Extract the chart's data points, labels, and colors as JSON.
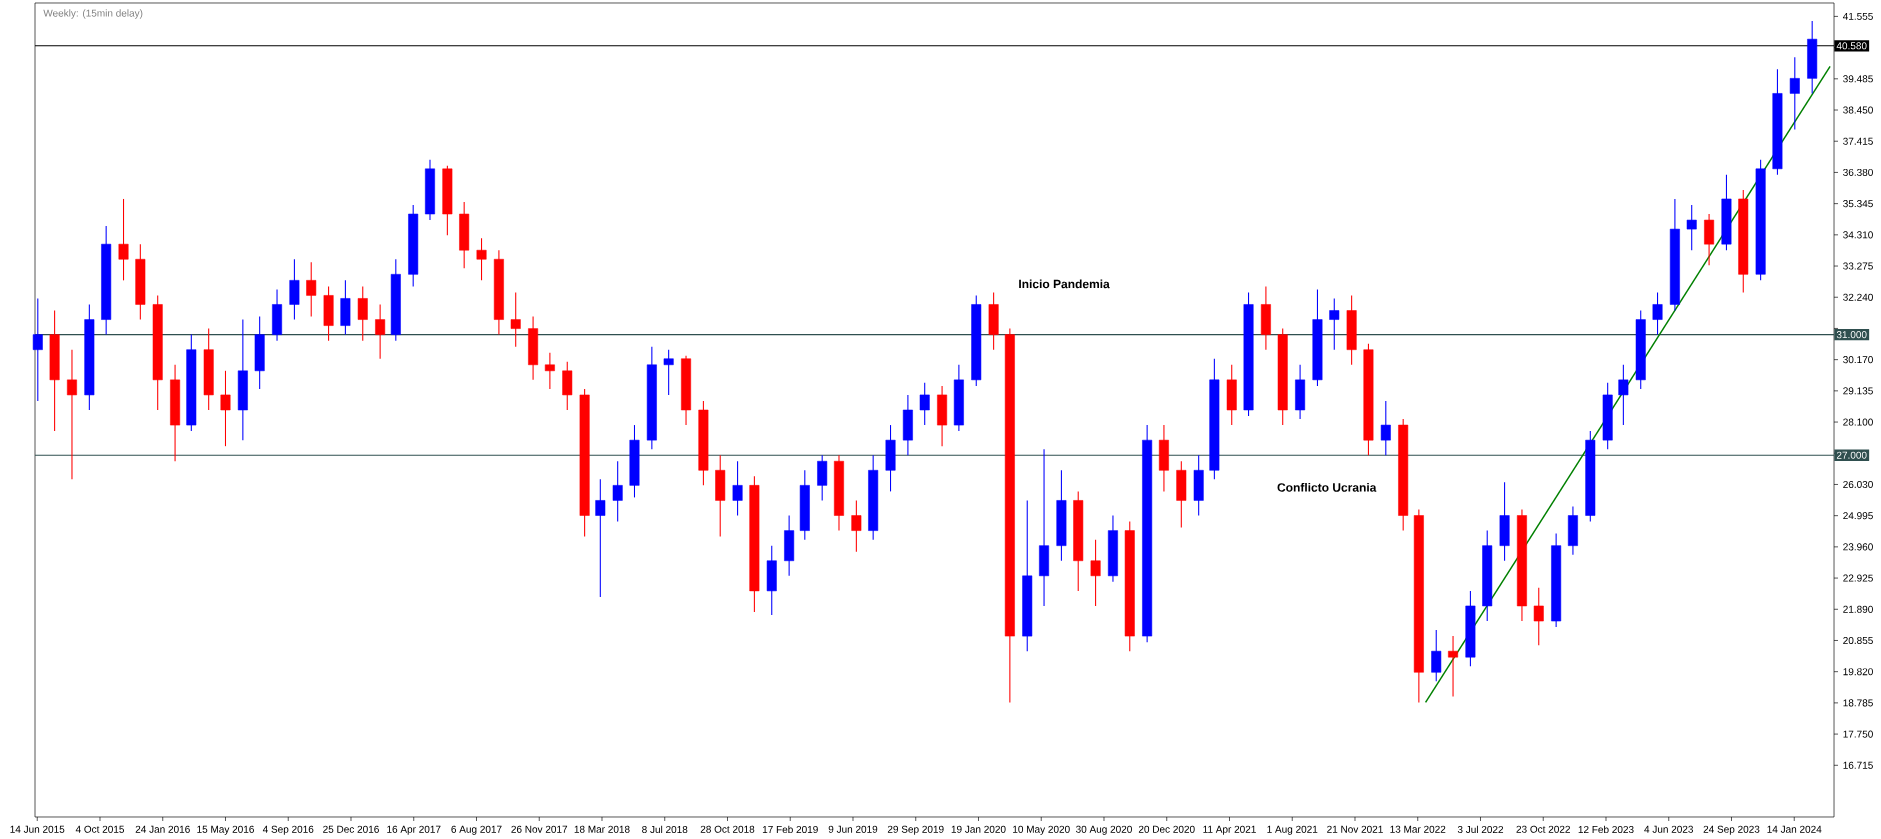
{
  "chart_data": {
    "type": "candlestick",
    "title": "Weekly: (15min delay)",
    "xlim": [
      "2015-06-10",
      "2024-03-25"
    ],
    "xticks": [
      {
        "value": "2015-06-14",
        "label": "14 Jun 2015"
      },
      {
        "value": "2015-10-04",
        "label": "4 Oct 2015"
      },
      {
        "value": "2016-01-24",
        "label": "24 Jan 2016"
      },
      {
        "value": "2016-05-15",
        "label": "15 May 2016"
      },
      {
        "value": "2016-09-04",
        "label": "4 Sep 2016"
      },
      {
        "value": "2016-12-25",
        "label": "25 Dec 2016"
      },
      {
        "value": "2017-04-16",
        "label": "16 Apr 2017"
      },
      {
        "value": "2017-08-06",
        "label": "6 Aug 2017"
      },
      {
        "value": "2017-11-26",
        "label": "26 Nov 2017"
      },
      {
        "value": "2018-03-18",
        "label": "18 Mar 2018"
      },
      {
        "value": "2018-07-08",
        "label": "8 Jul 2018"
      },
      {
        "value": "2018-10-28",
        "label": "28 Oct 2018"
      },
      {
        "value": "2019-02-17",
        "label": "17 Feb 2019"
      },
      {
        "value": "2019-06-09",
        "label": "9 Jun 2019"
      },
      {
        "value": "2019-09-29",
        "label": "29 Sep 2019"
      },
      {
        "value": "2020-01-19",
        "label": "19 Jan 2020"
      },
      {
        "value": "2020-05-10",
        "label": "10 May 2020"
      },
      {
        "value": "2020-08-30",
        "label": "30 Aug 2020"
      },
      {
        "value": "2020-12-20",
        "label": "20 Dec 2020"
      },
      {
        "value": "2021-04-11",
        "label": "11 Apr 2021"
      },
      {
        "value": "2021-08-01",
        "label": "1 Aug 2021"
      },
      {
        "value": "2021-11-21",
        "label": "21 Nov 2021"
      },
      {
        "value": "2022-03-13",
        "label": "13 Mar 2022"
      },
      {
        "value": "2022-07-03",
        "label": "3 Jul 2022"
      },
      {
        "value": "2022-10-23",
        "label": "23 Oct 2022"
      },
      {
        "value": "2023-02-12",
        "label": "12 Feb 2023"
      },
      {
        "value": "2023-06-04",
        "label": "4 Jun 2023"
      },
      {
        "value": "2023-09-24",
        "label": "24 Sep 2023"
      },
      {
        "value": "2024-01-14",
        "label": "14 Jan 2024"
      }
    ],
    "ylim": [
      15.0,
      42.0
    ],
    "yticks": [
      16.715,
      {
        "value": 17.75,
        "label": "17.750"
      },
      18.785,
      {
        "value": 19.82,
        "label": "19.820"
      },
      20.855,
      {
        "value": 21.89,
        "label": "21.890"
      },
      22.925,
      {
        "value": 23.96,
        "label": "23.960"
      },
      24.995,
      {
        "value": 26.03,
        "label": "26.030"
      },
      {
        "value": 27.065,
        "label": null
      },
      {
        "value": 28.1,
        "label": "28.100"
      },
      29.135,
      {
        "value": 30.17,
        "label": "30.170"
      },
      {
        "value": 31.205,
        "label": null
      },
      {
        "value": 32.24,
        "label": "32.240"
      },
      33.275,
      {
        "value": 34.31,
        "label": "34.310"
      },
      35.345,
      {
        "value": 36.38,
        "label": "36.380"
      },
      37.415,
      {
        "value": 38.45,
        "label": "38.450"
      },
      39.485,
      {
        "value": 40.52,
        "label": null
      },
      41.555
    ],
    "ref_lines": [
      {
        "axis": "y",
        "value": 40.58,
        "label": "40.580",
        "color": "#000000"
      },
      {
        "axis": "y",
        "value": 31.0,
        "label": "31.000",
        "color": "#2f4f4f"
      },
      {
        "axis": "y",
        "value": 27.0,
        "label": "27.000",
        "color": "#2f4f4f"
      }
    ],
    "annotations": [
      "Inicio Pandemia",
      "Conflicto Ucrania"
    ],
    "series": [
      {
        "type": "line",
        "color": "#008000",
        "x": [
          "2022-03-27",
          "2024-03-18"
        ],
        "values": [
          18.8,
          39.9
        ]
      },
      {
        "x": [
          "2015-06-15",
          "2015-07-15",
          "2015-08-15",
          "2015-09-15",
          "2015-10-15",
          "2015-11-15",
          "2015-12-15",
          "2016-01-15",
          "2016-02-15",
          "2016-03-15",
          "2016-04-15",
          "2016-05-15",
          "2016-06-15",
          "2016-07-15",
          "2016-08-15",
          "2016-09-15",
          "2016-10-15",
          "2016-11-15",
          "2016-12-15",
          "2017-01-15",
          "2017-02-15",
          "2017-03-15",
          "2017-04-15",
          "2017-05-15",
          "2017-06-15",
          "2017-07-15",
          "2017-08-15",
          "2017-09-15",
          "2017-10-15",
          "2017-11-15",
          "2017-12-15",
          "2018-01-15",
          "2018-02-15",
          "2018-03-15",
          "2018-04-15",
          "2018-05-15",
          "2018-06-15",
          "2018-07-15",
          "2018-08-15",
          "2018-09-15",
          "2018-10-15",
          "2018-11-15",
          "2018-12-15",
          "2019-01-15",
          "2019-02-15",
          "2019-03-15",
          "2019-04-15",
          "2019-05-15",
          "2019-06-15",
          "2019-07-15",
          "2019-08-15",
          "2019-09-15",
          "2019-10-15",
          "2019-11-15",
          "2019-12-15",
          "2020-01-15",
          "2020-02-15",
          "2020-03-15",
          "2020-04-15",
          "2020-05-15",
          "2020-06-15",
          "2020-07-15",
          "2020-08-15",
          "2020-09-15",
          "2020-10-15",
          "2020-11-15",
          "2020-12-15",
          "2021-01-15",
          "2021-02-15",
          "2021-03-15",
          "2021-04-15",
          "2021-05-15",
          "2021-06-15",
          "2021-07-15",
          "2021-08-15",
          "2021-09-15",
          "2021-10-15",
          "2021-11-15",
          "2021-12-15",
          "2022-01-15",
          "2022-02-15",
          "2022-03-15",
          "2022-04-15",
          "2022-05-15",
          "2022-06-15",
          "2022-07-15",
          "2022-08-15",
          "2022-09-15",
          "2022-10-15",
          "2022-11-15",
          "2022-12-15",
          "2023-01-15",
          "2023-02-15",
          "2023-03-15",
          "2023-04-15",
          "2023-05-15",
          "2023-06-15",
          "2023-07-15",
          "2023-08-15",
          "2023-09-15",
          "2023-10-15",
          "2023-11-15",
          "2023-12-15",
          "2024-01-15",
          "2024-02-15"
        ],
        "ohlc": [
          [
            30.5,
            32.2,
            28.8,
            31.0
          ],
          [
            31.0,
            31.8,
            27.8,
            29.5
          ],
          [
            29.5,
            30.5,
            26.2,
            29.0
          ],
          [
            29.0,
            32.0,
            28.5,
            31.5
          ],
          [
            31.5,
            34.6,
            31.0,
            34.0
          ],
          [
            34.0,
            35.5,
            32.8,
            33.5
          ],
          [
            33.5,
            34.0,
            31.5,
            32.0
          ],
          [
            32.0,
            32.3,
            28.5,
            29.5
          ],
          [
            29.5,
            30.0,
            26.8,
            28.0
          ],
          [
            28.0,
            31.0,
            27.8,
            30.5
          ],
          [
            30.5,
            31.2,
            28.5,
            29.0
          ],
          [
            29.0,
            29.8,
            27.3,
            28.5
          ],
          [
            28.5,
            31.5,
            27.5,
            29.8
          ],
          [
            29.8,
            31.6,
            29.2,
            31.0
          ],
          [
            31.0,
            32.5,
            30.8,
            32.0
          ],
          [
            32.0,
            33.5,
            31.5,
            32.8
          ],
          [
            32.8,
            33.4,
            31.6,
            32.3
          ],
          [
            32.3,
            32.6,
            30.8,
            31.3
          ],
          [
            31.3,
            32.8,
            31.0,
            32.2
          ],
          [
            32.2,
            32.6,
            30.8,
            31.5
          ],
          [
            31.5,
            32.0,
            30.2,
            31.0
          ],
          [
            31.0,
            33.5,
            30.8,
            33.0
          ],
          [
            33.0,
            35.3,
            32.6,
            35.0
          ],
          [
            35.0,
            36.8,
            34.8,
            36.5
          ],
          [
            36.5,
            36.6,
            34.3,
            35.0
          ],
          [
            35.0,
            35.4,
            33.2,
            33.8
          ],
          [
            33.8,
            34.2,
            32.8,
            33.5
          ],
          [
            33.5,
            33.8,
            31.0,
            31.5
          ],
          [
            31.5,
            32.4,
            30.6,
            31.2
          ],
          [
            31.2,
            31.6,
            29.5,
            30.0
          ],
          [
            30.0,
            30.4,
            29.2,
            29.8
          ],
          [
            29.8,
            30.1,
            28.5,
            29.0
          ],
          [
            29.0,
            29.2,
            24.3,
            25.0
          ],
          [
            25.0,
            26.2,
            22.3,
            25.5
          ],
          [
            25.5,
            26.8,
            24.8,
            26.0
          ],
          [
            26.0,
            28.0,
            25.6,
            27.5
          ],
          [
            27.5,
            30.6,
            27.2,
            30.0
          ],
          [
            30.0,
            30.5,
            29.0,
            30.2
          ],
          [
            30.2,
            30.3,
            28.0,
            28.5
          ],
          [
            28.5,
            28.8,
            26.0,
            26.5
          ],
          [
            26.5,
            27.0,
            24.3,
            25.5
          ],
          [
            25.5,
            26.8,
            25.0,
            26.0
          ],
          [
            26.0,
            26.3,
            21.8,
            22.5
          ],
          [
            22.5,
            24.0,
            21.7,
            23.5
          ],
          [
            23.5,
            25.0,
            23.0,
            24.5
          ],
          [
            24.5,
            26.5,
            24.2,
            26.0
          ],
          [
            26.0,
            27.0,
            25.5,
            26.8
          ],
          [
            26.8,
            27.0,
            24.5,
            25.0
          ],
          [
            25.0,
            25.5,
            23.8,
            24.5
          ],
          [
            24.5,
            27.0,
            24.2,
            26.5
          ],
          [
            26.5,
            28.0,
            25.8,
            27.5
          ],
          [
            27.5,
            29.0,
            27.0,
            28.5
          ],
          [
            28.5,
            29.4,
            28.0,
            29.0
          ],
          [
            29.0,
            29.3,
            27.3,
            28.0
          ],
          [
            28.0,
            30.0,
            27.8,
            29.5
          ],
          [
            29.5,
            32.3,
            29.3,
            32.0
          ],
          [
            32.0,
            32.4,
            30.5,
            31.0
          ],
          [
            31.0,
            31.2,
            18.8,
            21.0
          ],
          [
            21.0,
            25.5,
            20.5,
            23.0
          ],
          [
            23.0,
            27.2,
            22.0,
            24.0
          ],
          [
            24.0,
            26.5,
            23.5,
            25.5
          ],
          [
            25.5,
            25.8,
            22.5,
            23.5
          ],
          [
            23.5,
            24.2,
            22.0,
            23.0
          ],
          [
            23.0,
            25.0,
            22.8,
            24.5
          ],
          [
            24.5,
            24.8,
            20.5,
            21.0
          ],
          [
            21.0,
            28.0,
            20.8,
            27.5
          ],
          [
            27.5,
            28.0,
            25.8,
            26.5
          ],
          [
            26.5,
            26.8,
            24.6,
            25.5
          ],
          [
            25.5,
            27.0,
            25.0,
            26.5
          ],
          [
            26.5,
            30.2,
            26.2,
            29.5
          ],
          [
            29.5,
            30.0,
            28.0,
            28.5
          ],
          [
            28.5,
            32.4,
            28.3,
            32.0
          ],
          [
            32.0,
            32.6,
            30.5,
            31.0
          ],
          [
            31.0,
            31.2,
            28.0,
            28.5
          ],
          [
            28.5,
            30.0,
            28.2,
            29.5
          ],
          [
            29.5,
            32.5,
            29.3,
            31.5
          ],
          [
            31.5,
            32.2,
            30.5,
            31.8
          ],
          [
            31.8,
            32.3,
            30.0,
            30.5
          ],
          [
            30.5,
            30.7,
            27.0,
            27.5
          ],
          [
            27.5,
            28.8,
            27.0,
            28.0
          ],
          [
            28.0,
            28.2,
            24.5,
            25.0
          ],
          [
            25.0,
            25.2,
            18.8,
            19.8
          ],
          [
            19.8,
            21.2,
            19.5,
            20.5
          ],
          [
            20.5,
            21.0,
            19.0,
            20.3
          ],
          [
            20.3,
            22.5,
            20.0,
            22.0
          ],
          [
            22.0,
            24.5,
            21.5,
            24.0
          ],
          [
            24.0,
            26.1,
            23.5,
            25.0
          ],
          [
            25.0,
            25.2,
            21.5,
            22.0
          ],
          [
            22.0,
            22.6,
            20.7,
            21.5
          ],
          [
            21.5,
            24.4,
            21.3,
            24.0
          ],
          [
            24.0,
            25.3,
            23.7,
            25.0
          ],
          [
            25.0,
            27.8,
            24.8,
            27.5
          ],
          [
            27.5,
            29.4,
            27.2,
            29.0
          ],
          [
            29.0,
            30.0,
            28.0,
            29.5
          ],
          [
            29.5,
            31.8,
            29.2,
            31.5
          ],
          [
            31.5,
            32.4,
            31.0,
            32.0
          ],
          [
            32.0,
            35.5,
            31.8,
            34.5
          ],
          [
            34.5,
            35.3,
            33.8,
            34.8
          ],
          [
            34.8,
            35.0,
            33.3,
            34.0
          ],
          [
            34.0,
            36.3,
            33.8,
            35.5
          ],
          [
            35.5,
            35.8,
            32.4,
            33.0
          ],
          [
            33.0,
            36.8,
            32.8,
            36.5
          ],
          [
            36.5,
            39.8,
            36.3,
            39.0
          ],
          [
            39.0,
            40.2,
            37.8,
            39.5
          ],
          [
            39.5,
            41.4,
            39.0,
            40.8
          ]
        ],
        "colors": [
          "#0000ff",
          "#ff0000",
          "#ff0000",
          "#0000ff",
          "#0000ff",
          "#ff0000",
          "#ff0000",
          "#ff0000",
          "#ff0000",
          "#0000ff",
          "#ff0000",
          "#ff0000",
          "#0000ff",
          "#0000ff",
          "#0000ff",
          "#0000ff",
          "#ff0000",
          "#ff0000",
          "#0000ff",
          "#ff0000",
          "#ff0000",
          "#0000ff",
          "#0000ff",
          "#0000ff",
          "#ff0000",
          "#ff0000",
          "#ff0000",
          "#ff0000",
          "#ff0000",
          "#ff0000",
          "#ff0000",
          "#ff0000",
          "#ff0000",
          "#0000ff",
          "#0000ff",
          "#0000ff",
          "#0000ff",
          "#0000ff",
          "#ff0000",
          "#ff0000",
          "#ff0000",
          "#0000ff",
          "#ff0000",
          "#0000ff",
          "#0000ff",
          "#0000ff",
          "#0000ff",
          "#ff0000",
          "#ff0000",
          "#0000ff",
          "#0000ff",
          "#0000ff",
          "#0000ff",
          "#ff0000",
          "#0000ff",
          "#0000ff",
          "#ff0000",
          "#ff0000",
          "#0000ff",
          "#0000ff",
          "#0000ff",
          "#ff0000",
          "#ff0000",
          "#0000ff",
          "#ff0000",
          "#0000ff",
          "#ff0000",
          "#ff0000",
          "#0000ff",
          "#0000ff",
          "#ff0000",
          "#0000ff",
          "#ff0000",
          "#ff0000",
          "#0000ff",
          "#0000ff",
          "#0000ff",
          "#ff0000",
          "#ff0000",
          "#0000ff",
          "#ff0000",
          "#ff0000",
          "#0000ff",
          "#ff0000",
          "#0000ff",
          "#0000ff",
          "#0000ff",
          "#ff0000",
          "#ff0000",
          "#0000ff",
          "#0000ff",
          "#0000ff",
          "#0000ff",
          "#0000ff",
          "#0000ff",
          "#0000ff",
          "#0000ff",
          "#0000ff",
          "#ff0000",
          "#0000ff",
          "#ff0000",
          "#0000ff",
          "#0000ff",
          "#0000ff",
          "#0000ff"
        ]
      }
    ]
  }
}
